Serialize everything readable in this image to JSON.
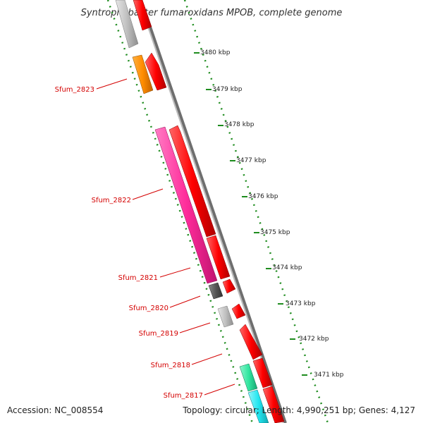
{
  "title": "Syntrophobacter fumaroxidans MPOB, complete genome",
  "footer": {
    "accession": "Accession: NC_008554",
    "topology": "Topology: circular; Length: 4,990,251 bp; Genes: 4,127"
  },
  "colors": {
    "backbone_dark": "#6e6e6e",
    "backbone_light": "#bdbdbd",
    "scale_dots": "#1e8c1e",
    "label_red": "#d40000",
    "forward_cds": "#ff0000",
    "gene_2823": "#ff8c00",
    "gene_2822": "#ff2d9b",
    "gene_2821": "#555555",
    "gene_2819": "#c0c0c0",
    "gene_2818": "#33e6a0",
    "gene_2817": "#22e6f0"
  },
  "scale_labels": [
    "3480 kbp",
    "3479 kbp",
    "3478 kbp",
    "3477 kbp",
    "3476 kbp",
    "3475 kbp",
    "3474 kbp",
    "3473 kbp",
    "3472 kbp",
    "3471 kbp"
  ],
  "gene_labels": [
    "Sfum_2823",
    "Sfum_2822",
    "Sfum_2821",
    "Sfum_2820",
    "Sfum_2819",
    "Sfum_2818",
    "Sfum_2817"
  ]
}
